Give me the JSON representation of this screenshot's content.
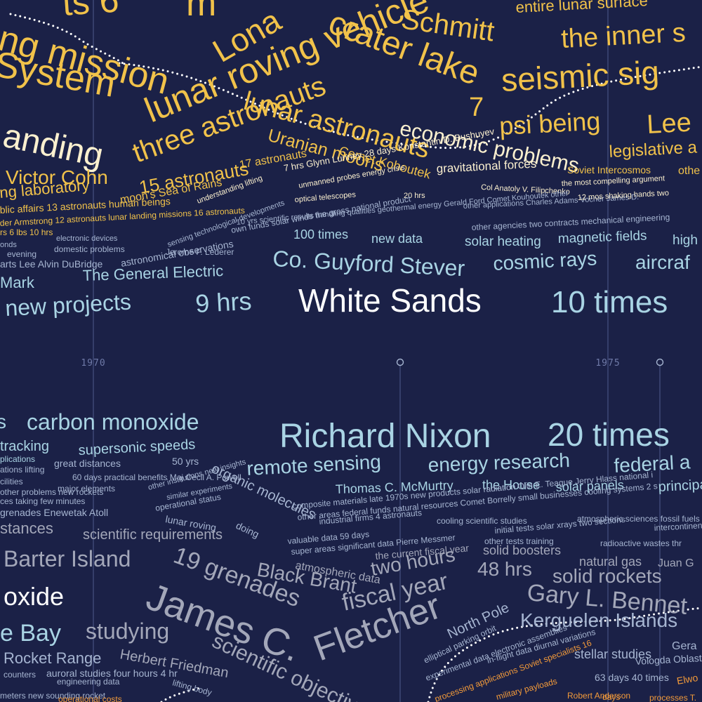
{
  "palette": {
    "background": "#1b2147",
    "gold": "#f1c24a",
    "cream": "#fbf0cf",
    "white": "#ffffff",
    "pale_blue": "#a9d4e4",
    "steel": "#a6b5d1",
    "grey": "#a3a7b9",
    "orange": "#f29a3a",
    "gridline": "#4f5a8c",
    "dots": "#ffffff"
  },
  "timeline": {
    "year_labels": [
      "1970",
      "1975"
    ]
  },
  "top_band": {
    "words": [
      {
        "text": "ts 6"
      },
      {
        "text": "m"
      },
      {
        "text": "Lona"
      },
      {
        "text": "crater lake"
      },
      {
        "text": "Schmitt"
      },
      {
        "text": "entire lunar surface"
      },
      {
        "text": "ng mission"
      },
      {
        "text": "the inner s"
      },
      {
        "text": "System"
      },
      {
        "text": "lunar roving vehicle"
      },
      {
        "text": "seismic sig"
      },
      {
        "text": "lunar astronauts"
      },
      {
        "text": "7"
      },
      {
        "text": "anding"
      },
      {
        "text": "three astronauts"
      },
      {
        "text": "Uranian moons"
      },
      {
        "text": "economic problems"
      },
      {
        "text": "psi being"
      },
      {
        "text": "Lee"
      },
      {
        "text": "Victor Cohn"
      },
      {
        "text": "15 astronauts"
      },
      {
        "text": "17 astronauts"
      },
      {
        "text": "Comet Kohoutek"
      },
      {
        "text": "gravitational forces"
      },
      {
        "text": "legislative a"
      },
      {
        "text": "ng laboratory"
      },
      {
        "text": "moon's Sea of Rains"
      },
      {
        "text": "7 hrs Glynn Lunney 28 days Konstantin D. Bushuyev"
      },
      {
        "text": "Soviet Intercosmos"
      },
      {
        "text": "othe"
      },
      {
        "text": "blic affairs 13 astronauts human beings"
      },
      {
        "text": "understanding lifting"
      },
      {
        "text": "unmanned probes energy crisis"
      },
      {
        "text": "Col Anatoly V. Filipchenko"
      },
      {
        "text": "the most compelling argument"
      },
      {
        "text": "der Armstrong 12 astronauts lunar landing missions 16 astronauts"
      },
      {
        "text": "optical telescopes"
      },
      {
        "text": "20 hrs"
      },
      {
        "text": "other applications Charles Adams Vocher James D."
      },
      {
        "text": "12 mos shaking hands two"
      },
      {
        "text": "sensing technological developments"
      },
      {
        "text": "10 yrs scientific results handling qualities geothermal energy Gerald Ford Comet Kouhoutek other"
      },
      {
        "text": "rs 6 lbs 10 hrs"
      },
      {
        "text": "own funds solar winds the gross national product"
      },
      {
        "text": "other agencies two contracts mechanical engineering"
      },
      {
        "text": "onds"
      },
      {
        "text": "electronic devices"
      },
      {
        "text": "100 times"
      },
      {
        "text": "new data"
      },
      {
        "text": "solar heating"
      },
      {
        "text": "magnetic fields"
      },
      {
        "text": "high a"
      },
      {
        "text": "evening"
      },
      {
        "text": "domestic problems"
      },
      {
        "text": "Jerome F. Lederer"
      },
      {
        "text": "astronomical observations"
      },
      {
        "text": "arts Lee Alvin DuBridge"
      },
      {
        "text": "Co. Guyford Stever"
      },
      {
        "text": "cosmic rays"
      },
      {
        "text": "aircraf"
      },
      {
        "text": "Mark"
      },
      {
        "text": "The General Electric"
      },
      {
        "text": "new projects"
      },
      {
        "text": "9 hrs"
      },
      {
        "text": "White Sands"
      },
      {
        "text": "10 times"
      }
    ]
  },
  "bottom_band": {
    "words": [
      {
        "text": "s"
      },
      {
        "text": "carbon monoxide"
      },
      {
        "text": "Richard Nixon"
      },
      {
        "text": "20 times"
      },
      {
        "text": "tracking"
      },
      {
        "text": "supersonic speeds"
      },
      {
        "text": "plications"
      },
      {
        "text": "great distances"
      },
      {
        "text": "50 yrs"
      },
      {
        "text": "organic molecules"
      },
      {
        "text": "remote sensing"
      },
      {
        "text": "energy research"
      },
      {
        "text": "federal a"
      },
      {
        "text": "ations lifting"
      },
      {
        "text": "60 days practical benefits Maj Cecil A. Powell"
      },
      {
        "text": "Thomas C. McMurtry"
      },
      {
        "text": "the House"
      },
      {
        "text": "solar panels"
      },
      {
        "text": "principal"
      },
      {
        "text": "cilities"
      },
      {
        "text": "major elements"
      },
      {
        "text": "other institutions new insights"
      },
      {
        "text": "composite materials late 1970s new products solar radiation Olin E. Teague Jerry Hlass national i"
      },
      {
        "text": "other problems new rockets"
      },
      {
        "text": "similar experiments"
      },
      {
        "text": "other areas federal funds natural resources Comet Borrelly small businesses cooling systems 2 s"
      },
      {
        "text": "ces taking few minutes"
      },
      {
        "text": "operational status"
      },
      {
        "text": "industrial firms 4 astronauts"
      },
      {
        "text": "cooling scientific studies"
      },
      {
        "text": "atmospheric sciences fossil fuels"
      },
      {
        "text": "grenades Enewetak Atoll"
      },
      {
        "text": "lunar roving"
      },
      {
        "text": "doing"
      },
      {
        "text": "valuable data 59 days"
      },
      {
        "text": "initial tests solar xrays two sections"
      },
      {
        "text": "intercontinen"
      },
      {
        "text": "stances"
      },
      {
        "text": "scientific requirements"
      },
      {
        "text": "super areas significant data Pierre Messmer"
      },
      {
        "text": "other tests training"
      },
      {
        "text": "radioactive wastes thr"
      },
      {
        "text": "atmospheric data"
      },
      {
        "text": "the current fiscal year"
      },
      {
        "text": "solid boosters"
      },
      {
        "text": "natural gas"
      },
      {
        "text": "Juan G"
      },
      {
        "text": "Barter Island"
      },
      {
        "text": "19 grenades"
      },
      {
        "text": "Black Brant"
      },
      {
        "text": "two hours"
      },
      {
        "text": "48 hrs"
      },
      {
        "text": "solid rockets"
      },
      {
        "text": "oxide"
      },
      {
        "text": "James C."
      },
      {
        "text": "fiscal year"
      },
      {
        "text": "Gary L. Bennet"
      },
      {
        "text": "e Bay"
      },
      {
        "text": "studying"
      },
      {
        "text": "Fletcher"
      },
      {
        "text": "North Pole"
      },
      {
        "text": "Kerguelen Islands"
      },
      {
        "text": "Rocket Range"
      },
      {
        "text": "Herbert Friedman"
      },
      {
        "text": "scientific objectives"
      },
      {
        "text": "stellar studies"
      },
      {
        "text": "Gera"
      },
      {
        "text": "counters"
      },
      {
        "text": "auroral studies four hours 4 hr"
      },
      {
        "text": "elliptical parking orbit"
      },
      {
        "text": "in-flight data diurnal variations"
      },
      {
        "text": "Vologda Oblast 13 astr"
      },
      {
        "text": "engineering data"
      },
      {
        "text": "lifting body"
      },
      {
        "text": "experimental data electronic assemblies"
      },
      {
        "text": "63 days 40 times"
      },
      {
        "text": "meters new sounding rocket"
      },
      {
        "text": "processing applications Soviet specialists 16"
      },
      {
        "text": "Robert Anderson"
      },
      {
        "text": "Elwo"
      },
      {
        "text": "operational costs"
      },
      {
        "text": "military payloads"
      },
      {
        "text": "days"
      },
      {
        "text": "processes T."
      }
    ]
  }
}
